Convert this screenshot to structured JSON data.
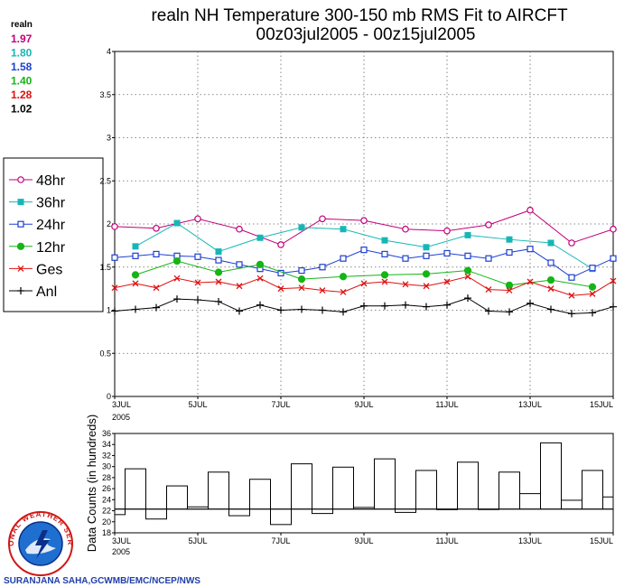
{
  "title": {
    "line1": "realn NH Temperature 300-150 mb RMS Fit to AIRCFT",
    "line2": "00z03jul2005 - 00z15jul2005"
  },
  "means": {
    "header": "realn",
    "values": [
      {
        "text": "1.97",
        "color": "#c2007a"
      },
      {
        "text": "1.80",
        "color": "#17b6b6"
      },
      {
        "text": "1.58",
        "color": "#1f3fd0"
      },
      {
        "text": "1.40",
        "color": "#15b515"
      },
      {
        "text": "1.28",
        "color": "#e01010"
      },
      {
        "text": "1.02",
        "color": "#000000"
      }
    ]
  },
  "legend": [
    {
      "label": "48hr",
      "color": "#c2007a",
      "marker": "circle-open"
    },
    {
      "label": "36hr",
      "color": "#17b6b6",
      "marker": "square-filled"
    },
    {
      "label": "24hr",
      "color": "#1f3fd0",
      "marker": "square-open"
    },
    {
      "label": "12hr",
      "color": "#15b515",
      "marker": "circle-filled"
    },
    {
      "label": "Ges",
      "color": "#e01010",
      "marker": "x"
    },
    {
      "label": "Anl",
      "color": "#000000",
      "marker": "plus"
    }
  ],
  "x_ticks": [
    "3JUL",
    "5JUL",
    "7JUL",
    "9JUL",
    "11JUL",
    "13JUL",
    "15JUL"
  ],
  "x_year": "2005",
  "chart_data": [
    {
      "type": "line",
      "title": "realn NH Temperature 300-150 mb RMS Fit to AIRCFT",
      "subtitle": "00z03jul2005 - 00z15jul2005",
      "x_range": [
        "00z03jul2005",
        "00z15jul2005"
      ],
      "x_step_hours": 12,
      "ylim": [
        0,
        4
      ],
      "yticks": [
        "0",
        "0.5",
        "1",
        "1.5",
        "2",
        "2.5",
        "3",
        "3.5",
        "4"
      ],
      "grid": true,
      "legend_position": "left",
      "series": [
        {
          "name": "48hr",
          "values": [
            1.97,
            null,
            1.95,
            null,
            2.06,
            null,
            1.94,
            null,
            1.76,
            null,
            2.06,
            null,
            2.04,
            null,
            1.94,
            null,
            1.92,
            null,
            1.99,
            null,
            2.16,
            null,
            1.78,
            null,
            1.94
          ]
        },
        {
          "name": "36hr",
          "values": [
            null,
            1.74,
            null,
            2.01,
            null,
            1.68,
            null,
            1.84,
            null,
            1.96,
            null,
            1.94,
            null,
            1.81,
            null,
            1.73,
            null,
            1.87,
            null,
            1.82,
            null,
            1.78,
            null,
            1.48,
            null
          ]
        },
        {
          "name": "24hr",
          "values": [
            1.61,
            1.63,
            1.65,
            1.63,
            1.62,
            1.58,
            1.53,
            1.48,
            1.43,
            1.46,
            1.5,
            1.6,
            1.7,
            1.65,
            1.6,
            1.63,
            1.66,
            1.63,
            1.6,
            1.67,
            1.71,
            1.55,
            1.38,
            1.49,
            1.6
          ]
        },
        {
          "name": "12hr",
          "values": [
            null,
            1.41,
            null,
            1.57,
            null,
            1.44,
            null,
            1.53,
            null,
            1.36,
            null,
            1.39,
            null,
            1.41,
            null,
            1.42,
            null,
            1.46,
            null,
            1.29,
            null,
            1.35,
            null,
            1.27,
            null
          ]
        },
        {
          "name": "Ges",
          "values": [
            1.26,
            1.31,
            1.26,
            1.37,
            1.32,
            1.33,
            1.28,
            1.37,
            1.25,
            1.26,
            1.23,
            1.21,
            1.31,
            1.33,
            1.3,
            1.28,
            1.33,
            1.39,
            1.24,
            1.23,
            1.33,
            1.25,
            1.17,
            1.19,
            1.34
          ]
        },
        {
          "name": "Anl",
          "values": [
            0.99,
            1.01,
            1.03,
            1.13,
            1.12,
            1.1,
            0.99,
            1.06,
            1.0,
            1.01,
            1.0,
            0.98,
            1.05,
            1.05,
            1.06,
            1.04,
            1.06,
            1.14,
            0.99,
            0.98,
            1.08,
            1.01,
            0.96,
            0.97,
            1.04
          ]
        }
      ]
    },
    {
      "type": "bar",
      "ylabel": "Data Counts (in hundreds)",
      "ylim": [
        18,
        36
      ],
      "yticks": [
        "18",
        "20",
        "22",
        "24",
        "26",
        "28",
        "30",
        "32",
        "34",
        "36"
      ],
      "baseline": 22.3,
      "values": [
        21.3,
        29.6,
        20.5,
        26.5,
        22.7,
        29.0,
        21.1,
        27.7,
        19.5,
        30.5,
        21.5,
        29.9,
        22.6,
        31.4,
        21.7,
        29.3,
        22.2,
        30.8,
        22.3,
        29.0,
        25.1,
        34.3,
        23.9,
        29.3,
        24.5
      ]
    }
  ],
  "credit": "SURANJANA SAHA,GCWMB/EMC/NCEP/NWS",
  "logo_text": "NATIONAL WEATHER SERVICE"
}
